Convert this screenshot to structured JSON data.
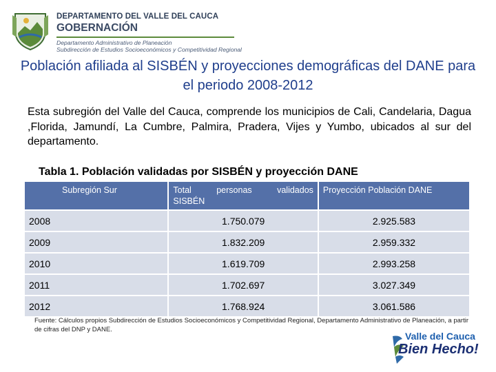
{
  "header": {
    "department": "DEPARTAMENTO DEL VALLE DEL CAUCA",
    "government": "GOBERNACIÓN",
    "office": "Departamento Administrativo de Planeación",
    "subdirectorate": "Subdirección de Estudios Socioeconómicos y Competitividad Regional",
    "seal_icon": "department-seal-icon",
    "colors": {
      "green": "#5b8a3a",
      "navy": "#3b4a64"
    }
  },
  "title": "Población afiliada al SISBÉN y proyecciones demográficas del DANE para el periodo 2008-2012",
  "intro": "Esta subregión del Valle del Cauca, comprende los municipios de Cali, Candelaria, Dagua ,Florida, Jamundí, La Cumbre, Palmira, Pradera, Vijes y Yumbo, ubicados al sur del departamento.",
  "table": {
    "caption": "Tabla 1. Población validadas por SISBÉN y proyección DANE",
    "headers": {
      "subregion": "Subregión Sur",
      "total_w1": "Total",
      "total_w2": "personas",
      "total_w3": "validados",
      "total_w4": "SISBÉN",
      "projection": "Proyección Población DANE"
    },
    "rows": [
      {
        "year": "2008",
        "sisben": "1.750.079",
        "dane": "2.925.583"
      },
      {
        "year": "2009",
        "sisben": "1.832.209",
        "dane": "2.959.332"
      },
      {
        "year": "2010",
        "sisben": "1.619.709",
        "dane": "2.993.258"
      },
      {
        "year": "2011",
        "sisben": "1.702.697",
        "dane": "3.027.349"
      },
      {
        "year": "2012",
        "sisben": "1.768.924",
        "dane": "3.061.586"
      }
    ],
    "colors": {
      "header_bg": "#5470a8",
      "cell_bg": "#d8dde8"
    }
  },
  "source": "Fuente: Cálculos propios Subdirección de Estudios Socioeconómicos y Competitividad Regional, Departamento Administrativo de Planeación, a partir de cifras del DNP y DANE.",
  "logo": {
    "line1": "Valle del Cauca",
    "line2": "Bien Hecho!",
    "icon": "valle-flag-logo-icon"
  }
}
